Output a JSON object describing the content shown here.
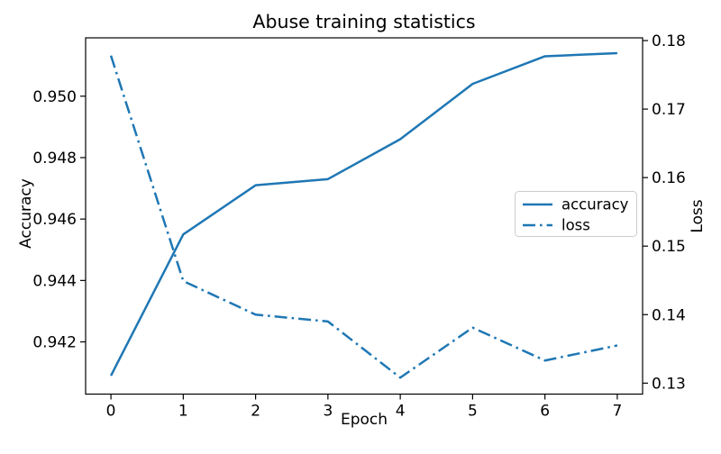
{
  "title": "Abuse training statistics",
  "axes": {
    "x": {
      "label": "Epoch",
      "tick_labels": [
        "0",
        "1",
        "2",
        "3",
        "4",
        "5",
        "6",
        "7"
      ]
    },
    "y_left": {
      "label": "Accuracy",
      "tick_labels": [
        "0.942",
        "0.944",
        "0.946",
        "0.948",
        "0.950"
      ]
    },
    "y_right": {
      "label": "Loss",
      "tick_labels": [
        "0.13",
        "0.14",
        "0.15",
        "0.16",
        "0.17",
        "0.18"
      ]
    }
  },
  "legend": {
    "items": [
      {
        "label": "accuracy",
        "line_style": "solid"
      },
      {
        "label": "loss",
        "line_style": "dashdot"
      }
    ]
  },
  "colors": {
    "line": "#1f77b4",
    "axis": "#000000",
    "text": "#000000",
    "legend_border": "#cccccc",
    "background": "#ffffff"
  },
  "chart_data": {
    "type": "line",
    "title": "Abuse training statistics",
    "xlabel": "Epoch",
    "ylabel_left": "Accuracy",
    "ylabel_right": "Loss",
    "x": [
      0,
      1,
      2,
      3,
      4,
      5,
      6,
      7
    ],
    "series": [
      {
        "name": "accuracy",
        "axis": "left",
        "style": "solid",
        "values": [
          0.9409,
          0.9455,
          0.9471,
          0.9473,
          0.9486,
          0.9504,
          0.9513,
          0.9514
        ]
      },
      {
        "name": "loss",
        "axis": "right",
        "style": "dashdot",
        "values": [
          0.1778,
          0.1449,
          0.14,
          0.139,
          0.1308,
          0.1381,
          0.1333,
          0.1355
        ]
      }
    ],
    "x_ticks": [
      0,
      1,
      2,
      3,
      4,
      5,
      6,
      7
    ],
    "y_left_ticks": [
      0.942,
      0.944,
      0.946,
      0.948,
      0.95
    ],
    "y_right_ticks": [
      0.13,
      0.14,
      0.15,
      0.16,
      0.17,
      0.18
    ],
    "xlim": [
      -0.35,
      7.35
    ],
    "ylim_left": [
      0.9403,
      0.9519
    ],
    "ylim_right": [
      0.1284,
      0.1804
    ],
    "grid": false,
    "legend_position": "center right"
  }
}
